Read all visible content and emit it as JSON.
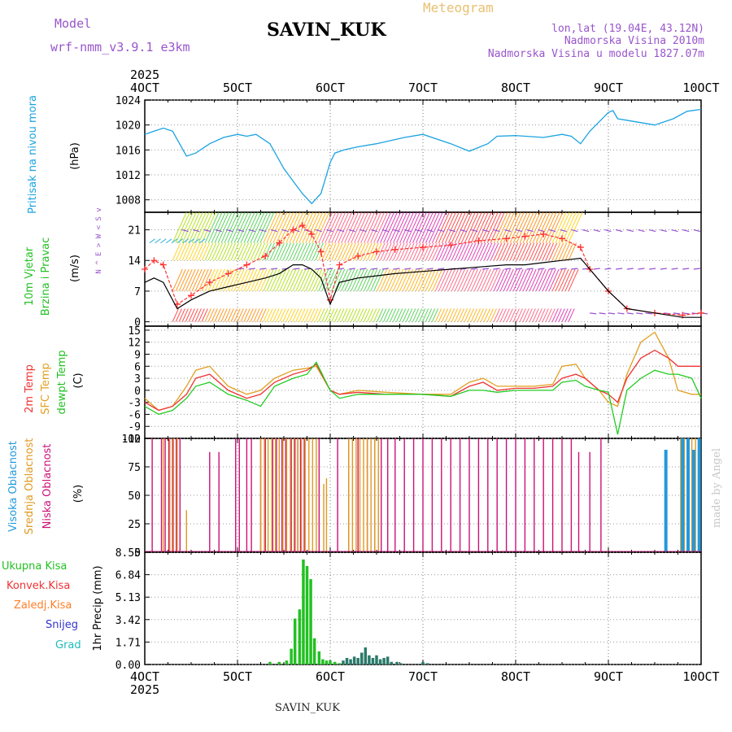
{
  "header": {
    "model_label": "Model",
    "model_name": "wrf-nmm_v3.9.1 e3km",
    "station": "SAVIN_KUK",
    "product": "Meteogram",
    "lonlat": "lon,lat (19.04E, 43.12N)",
    "altitude": "Nadmorska Visina 2010m",
    "model_altitude": "Nadmorska Visina u modelu 1827.07m"
  },
  "footer": {
    "station": "SAVIN_KUK",
    "credit": "made by Angel"
  },
  "time_axis": {
    "year": "2025",
    "ticks": [
      "4OCT",
      "5OCT",
      "6OCT",
      "7OCT",
      "8OCT",
      "9OCT",
      "10OCT"
    ]
  },
  "colors": {
    "pressure": "#1ba3e0",
    "wind_speed": "#000000",
    "wind_gust": "#ff3030",
    "temp2m": "#ee3333",
    "sfc_temp": "#e0a020",
    "dewpt": "#22cc22",
    "high_cloud": "#2299dd",
    "mid_cloud": "#e09a20",
    "low_cloud": "#cc1177",
    "total_precip": "#22c022",
    "conv_precip": "#ee3333",
    "frozen_precip": "#ff7f27",
    "snow": "#3333cc",
    "hail": "#22bbbb"
  },
  "chart_data": [
    {
      "type": "line",
      "name": "pressure",
      "title": "Pritisak na nivou mora",
      "ylabel": "(hPa)",
      "ylim": [
        1006,
        1024
      ],
      "yticks": [
        1008,
        1012,
        1016,
        1020,
        1024
      ],
      "x": [
        4.0,
        4.1,
        4.2,
        4.3,
        4.45,
        4.55,
        4.7,
        4.85,
        5.0,
        5.1,
        5.2,
        5.35,
        5.5,
        5.6,
        5.7,
        5.8,
        5.9,
        6.0,
        6.05,
        6.15,
        6.3,
        6.5,
        6.8,
        7.0,
        7.3,
        7.5,
        7.7,
        7.8,
        8.0,
        8.3,
        8.5,
        8.6,
        8.7,
        8.8,
        8.9,
        9.0,
        9.05,
        9.1,
        9.3,
        9.5,
        9.7,
        9.85,
        10.0
      ],
      "series": [
        {
          "name": "MSLP",
          "values": [
            1018.5,
            1019,
            1019.5,
            1019,
            1015,
            1015.5,
            1017,
            1018,
            1018.5,
            1018.2,
            1018.5,
            1017,
            1013,
            1011,
            1009,
            1007.4,
            1009,
            1014,
            1015.5,
            1016,
            1016.5,
            1017,
            1018,
            1018.5,
            1017,
            1015.8,
            1017,
            1018.2,
            1018.3,
            1018,
            1018.5,
            1018.2,
            1017,
            1019,
            1020.5,
            1022,
            1022.3,
            1021,
            1020.5,
            1020,
            1021,
            1022.2,
            1022.5
          ]
        }
      ]
    },
    {
      "type": "line",
      "name": "wind",
      "title": "10m Vjetar Brzina i Pravac",
      "ylabel": "(m/s)",
      "direction_key": "N ^ E > W < S v",
      "ylim": [
        -1,
        25
      ],
      "yticks": [
        0,
        7,
        14,
        21
      ],
      "x": [
        4.0,
        4.1,
        4.2,
        4.35,
        4.5,
        4.7,
        4.9,
        5.1,
        5.3,
        5.45,
        5.6,
        5.7,
        5.8,
        5.9,
        6.0,
        6.1,
        6.3,
        6.5,
        6.7,
        7.0,
        7.3,
        7.6,
        7.9,
        8.1,
        8.3,
        8.5,
        8.7,
        8.8,
        9.0,
        9.2,
        9.5,
        9.8,
        10.0
      ],
      "series": [
        {
          "name": "speed",
          "values": [
            9,
            10,
            9,
            3,
            5,
            7,
            8,
            9,
            10,
            11,
            13,
            13,
            12,
            10,
            4,
            9,
            10,
            10.5,
            11,
            11.5,
            12,
            12.5,
            13,
            13,
            13.5,
            14,
            14.5,
            12,
            7,
            3,
            2,
            1,
            1
          ]
        },
        {
          "name": "gust",
          "values": [
            12,
            14,
            13,
            4,
            6,
            9,
            11,
            13,
            15,
            18,
            21,
            22,
            20,
            16,
            5,
            13,
            15,
            16,
            16.5,
            17,
            17.5,
            18.5,
            19,
            19.5,
            20,
            19,
            17,
            12,
            7,
            3,
            2,
            1.5,
            2
          ]
        }
      ]
    },
    {
      "type": "line",
      "name": "temperature",
      "title": "2m Temp / SFC Temp / dewpt Temp",
      "ylabel": "(C)",
      "ylim": [
        -12,
        16
      ],
      "yticks": [
        -12,
        -9,
        -6,
        -3,
        0,
        3,
        6,
        9,
        12,
        15
      ],
      "x": [
        4.0,
        4.15,
        4.3,
        4.45,
        4.55,
        4.7,
        4.9,
        5.1,
        5.25,
        5.4,
        5.6,
        5.75,
        5.85,
        6.0,
        6.1,
        6.3,
        6.6,
        7.0,
        7.3,
        7.5,
        7.65,
        7.8,
        8.0,
        8.2,
        8.4,
        8.5,
        8.65,
        8.75,
        8.9,
        9.0,
        9.1,
        9.2,
        9.35,
        9.5,
        9.65,
        9.75,
        9.9,
        10.0
      ],
      "series": [
        {
          "name": "2m Temp",
          "values": [
            -3,
            -5,
            -4,
            -1,
            3,
            4,
            0,
            -2,
            -1,
            2,
            4,
            5,
            6.5,
            0,
            -1,
            -0.5,
            -1,
            -1,
            -1.5,
            1,
            2,
            0,
            0.5,
            0.5,
            1,
            3,
            4,
            3,
            0,
            -1,
            -3,
            3,
            8,
            10,
            8,
            6,
            6,
            6
          ]
        },
        {
          "name": "SFC Temp",
          "values": [
            -2,
            -5,
            -4,
            1,
            5,
            6,
            1,
            -1,
            0,
            3,
            5,
            5.5,
            6,
            0,
            -1,
            0,
            -0.5,
            -1,
            -1,
            2,
            3,
            1,
            1,
            1,
            1.5,
            6,
            6.5,
            3,
            0,
            -3,
            -4,
            4,
            12,
            14.5,
            8,
            0,
            -1,
            -1
          ]
        },
        {
          "name": "dewpt Temp",
          "values": [
            -4,
            -6,
            -5,
            -2,
            1,
            2,
            -1,
            -2.5,
            -4,
            1,
            3,
            4,
            7,
            0,
            -2,
            -1,
            -1,
            -1,
            -1.5,
            0,
            0,
            -0.5,
            0,
            0,
            0,
            2,
            2.5,
            1,
            0,
            -0.5,
            -11,
            0,
            3,
            5,
            4,
            4,
            3,
            -2
          ]
        }
      ]
    },
    {
      "type": "bar",
      "name": "cloudiness",
      "title": "Visoka Oblacnost / Srednja Oblacnost / Niska Oblacnost",
      "ylabel": "(%)",
      "ylim": [
        0,
        100
      ],
      "yticks": [
        0,
        25,
        50,
        75,
        100
      ],
      "series": [
        {
          "name": "Niska Oblacnost",
          "x": [
            4.08,
            4.18,
            4.22,
            4.26,
            4.3,
            4.34,
            4.38,
            4.7,
            4.8,
            4.98,
            5.02,
            5.1,
            5.15,
            5.25,
            5.3,
            5.38,
            5.42,
            5.48,
            5.52,
            5.58,
            5.62,
            5.65,
            5.68,
            5.72,
            5.88,
            6.08,
            6.2,
            6.3,
            6.4,
            6.48,
            6.55,
            6.62,
            6.7,
            6.8,
            6.9,
            7.0,
            7.1,
            7.2,
            7.3,
            7.4,
            7.5,
            7.6,
            7.7,
            7.8,
            7.9,
            8.0,
            8.1,
            8.2,
            8.3,
            8.4,
            8.5,
            8.6,
            8.68,
            8.8,
            8.92
          ],
          "values": [
            100,
            100,
            100,
            100,
            100,
            100,
            100,
            88,
            88,
            100,
            100,
            100,
            100,
            100,
            100,
            100,
            100,
            100,
            100,
            100,
            100,
            100,
            100,
            100,
            100,
            100,
            100,
            100,
            100,
            100,
            100,
            100,
            100,
            100,
            100,
            100,
            100,
            100,
            100,
            100,
            100,
            100,
            100,
            100,
            100,
            100,
            100,
            100,
            100,
            100,
            100,
            100,
            88,
            88,
            100
          ]
        },
        {
          "name": "Srednja Oblacnost",
          "x": [
            4.2,
            4.27,
            4.31,
            4.35,
            4.45,
            5.25,
            5.29,
            5.33,
            5.37,
            5.41,
            5.45,
            5.49,
            5.53,
            5.57,
            5.61,
            5.65,
            5.69,
            5.73,
            5.77,
            5.81,
            5.85,
            5.93,
            5.96,
            6.2,
            6.24,
            6.28,
            6.32,
            6.36,
            6.4,
            6.44,
            6.48,
            6.52,
            9.78,
            9.82,
            9.86,
            9.9,
            9.94
          ],
          "values": [
            100,
            100,
            100,
            100,
            37,
            100,
            100,
            100,
            100,
            100,
            100,
            100,
            100,
            100,
            100,
            100,
            100,
            100,
            100,
            100,
            100,
            60,
            65,
            100,
            100,
            100,
            100,
            100,
            100,
            100,
            100,
            100,
            100,
            100,
            100,
            100,
            100
          ]
        },
        {
          "name": "Visoka Oblacnost",
          "x": [
            9.62,
            9.8,
            9.86,
            9.92,
            9.98
          ],
          "values": [
            90,
            100,
            100,
            90,
            100
          ]
        }
      ]
    },
    {
      "type": "bar",
      "name": "precipitation",
      "title": "Ukupna Kisa / Konvek.Kisa / Zaledj.Kisa / Snijeg / Grad",
      "ylabel": "1hr Precip (mm)",
      "ylim": [
        0,
        8.55
      ],
      "yticks": [
        0,
        1.71,
        3.42,
        5.13,
        6.84,
        8.55
      ],
      "series": [
        {
          "name": "Ukupna Kisa",
          "x": [
            5.35,
            5.45,
            5.53,
            5.58,
            5.62,
            5.67,
            5.71,
            5.75,
            5.79,
            5.83,
            5.88,
            5.92,
            5.96,
            6.0,
            6.05,
            6.1
          ],
          "values": [
            0.2,
            0.2,
            0.3,
            1.2,
            3.5,
            4.2,
            8.0,
            7.5,
            6.5,
            2.0,
            1.0,
            0.4,
            0.3,
            0.3,
            0.2,
            0.1
          ]
        },
        {
          "name": "Grad",
          "x": [
            6.14,
            6.18,
            6.22,
            6.26,
            6.3,
            6.34,
            6.38,
            6.42,
            6.46,
            6.5,
            6.54,
            6.58,
            6.62,
            6.66,
            6.72,
            6.76,
            7.0,
            7.05
          ],
          "values": [
            0.3,
            0.5,
            0.4,
            0.6,
            0.5,
            0.9,
            1.3,
            0.7,
            0.5,
            0.7,
            0.4,
            0.5,
            0.6,
            0.2,
            0.2,
            0.1,
            0.2,
            0.1
          ]
        }
      ]
    }
  ]
}
